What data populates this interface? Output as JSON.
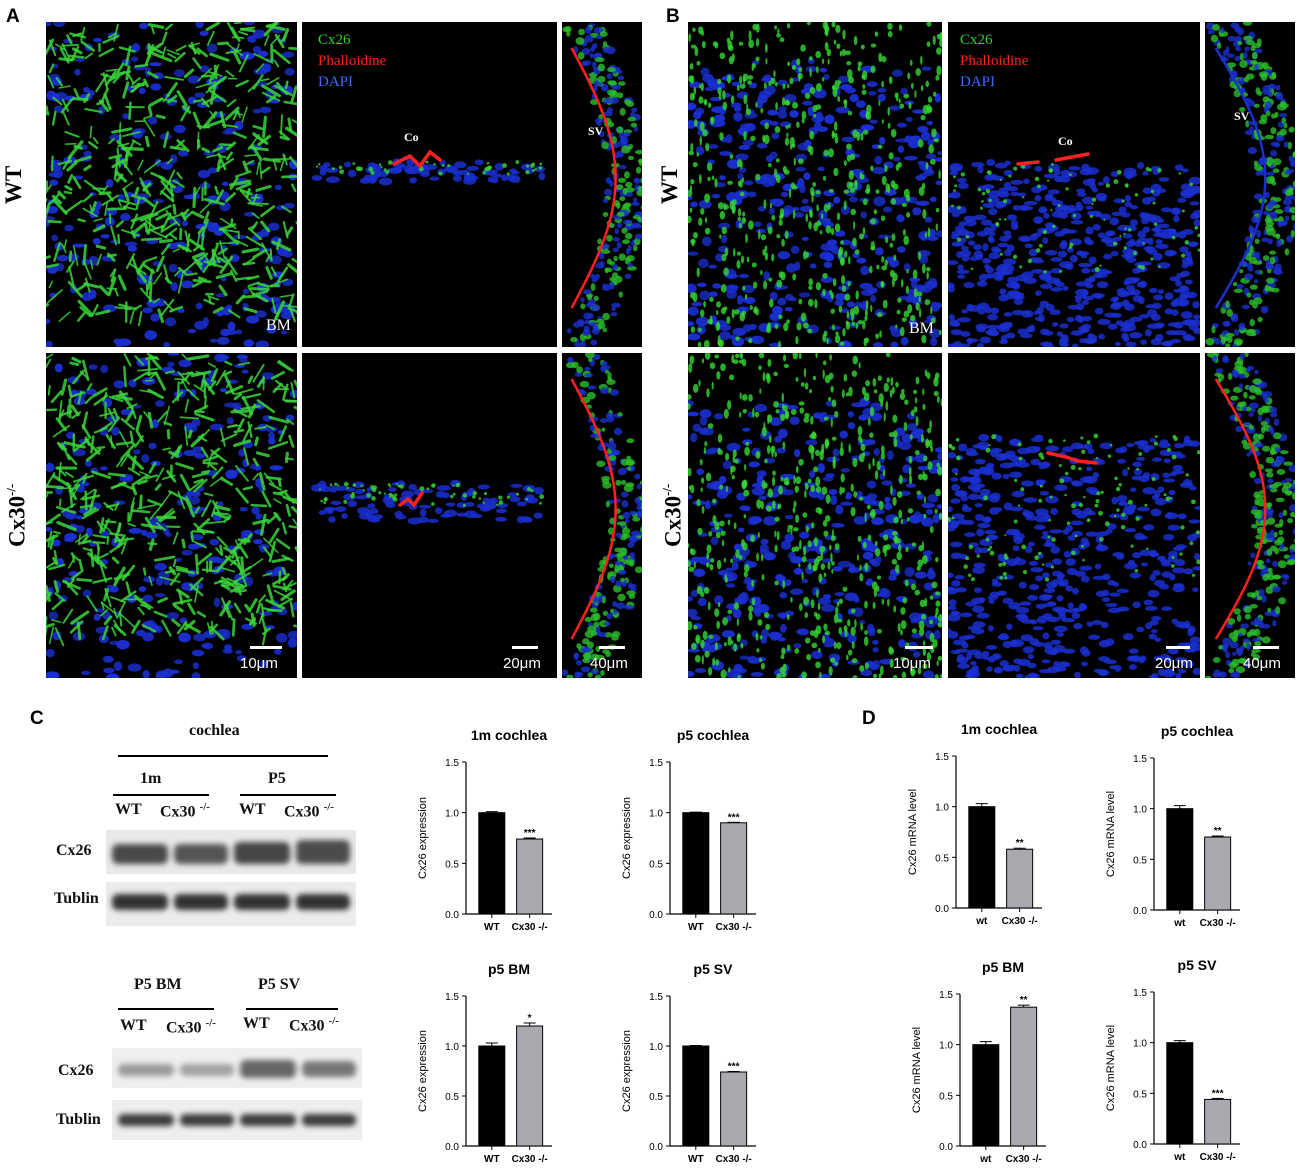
{
  "panels": {
    "a": "A",
    "b": "B",
    "c": "C",
    "d": "D"
  },
  "rows": {
    "wt": "WT",
    "ko": "Cx30",
    "ko_sup": "-/-"
  },
  "legend": {
    "cx26": "Cx26",
    "phalloidine": "Phalloidine",
    "dapi": "DAPI"
  },
  "labels": {
    "bm": "BM",
    "co": "Co",
    "sv": "SV"
  },
  "scales": {
    "s1": "10μm",
    "s2": "20μm",
    "s3": "40μm"
  },
  "colors": {
    "green": "#2fd22f",
    "red": "#ff2020",
    "blue": "#1428c8",
    "black_bar": "#000000",
    "gray_bar": "#a9a9b0"
  },
  "western": {
    "top_group": "cochlea",
    "sub1": "1m",
    "sub2": "P5",
    "bottom_group1": "P5 BM",
    "bottom_group2": "P5 SV",
    "wt": "WT",
    "ko": "Cx30",
    "ko_sup": "-/-",
    "band1": "Cx26",
    "band2": "Tublin"
  },
  "chart_data": [
    {
      "type": "bar",
      "title": "1m cochlea",
      "categories": [
        "WT",
        "Cx30 -/-"
      ],
      "values": [
        1.0,
        0.74
      ],
      "errors": [
        0.01,
        0.01
      ],
      "significance": [
        "",
        "***"
      ],
      "ylabel": "Cx26 expression",
      "ylim": [
        0,
        1.5
      ],
      "yticks": [
        "0.0",
        "0.5",
        "1.0",
        "1.5"
      ]
    },
    {
      "type": "bar",
      "title": "p5 cochlea",
      "categories": [
        "WT",
        "Cx30 -/-"
      ],
      "values": [
        1.0,
        0.9
      ],
      "errors": [
        0.005,
        0.005
      ],
      "significance": [
        "",
        "***"
      ],
      "ylabel": "Cx26 expression",
      "ylim": [
        0,
        1.5
      ],
      "yticks": [
        "0.0",
        "0.5",
        "1.0",
        "1.5"
      ]
    },
    {
      "type": "bar",
      "title": "p5 BM",
      "categories": [
        "WT",
        "Cx30 -/-"
      ],
      "values": [
        1.0,
        1.2
      ],
      "errors": [
        0.03,
        0.03
      ],
      "significance": [
        "",
        "*"
      ],
      "ylabel": "Cx26 expression",
      "ylim": [
        0,
        1.5
      ],
      "yticks": [
        "0.0",
        "0.5",
        "1.0",
        "1.5"
      ]
    },
    {
      "type": "bar",
      "title": "p5 SV",
      "categories": [
        "WT",
        "Cx30 -/-"
      ],
      "values": [
        1.0,
        0.74
      ],
      "errors": [
        0.005,
        0.005
      ],
      "significance": [
        "",
        "***"
      ],
      "ylabel": "Cx26 expression",
      "ylim": [
        0,
        1.5
      ],
      "yticks": [
        "0.0",
        "0.5",
        "1.0",
        "1.5"
      ]
    },
    {
      "type": "bar",
      "title": "1m cochlea",
      "categories": [
        "wt",
        "Cx30 -/-"
      ],
      "values": [
        1.0,
        0.58
      ],
      "errors": [
        0.03,
        0.01
      ],
      "significance": [
        "",
        "**"
      ],
      "ylabel": "Cx26 mRNA level",
      "ylim": [
        0,
        1.5
      ],
      "yticks": [
        "0.0",
        "0.5",
        "1.0",
        "1.5"
      ]
    },
    {
      "type": "bar",
      "title": "p5 cochlea",
      "categories": [
        "wt",
        "Cx30 -/-"
      ],
      "values": [
        1.0,
        0.72
      ],
      "errors": [
        0.03,
        0.01
      ],
      "significance": [
        "",
        "**"
      ],
      "ylabel": "Cx26 mRNA level",
      "ylim": [
        0,
        1.5
      ],
      "yticks": [
        "0.0",
        "0.5",
        "1.0",
        "1.5"
      ]
    },
    {
      "type": "bar",
      "title": "p5 BM",
      "categories": [
        "wt",
        "Cx30 -/-"
      ],
      "values": [
        1.0,
        1.37
      ],
      "errors": [
        0.03,
        0.02
      ],
      "significance": [
        "",
        "**"
      ],
      "ylabel": "Cx26 mRNA level",
      "ylim": [
        0,
        1.5
      ],
      "yticks": [
        "0.0",
        "0.5",
        "1.0",
        "1.5"
      ]
    },
    {
      "type": "bar",
      "title": "p5 SV",
      "categories": [
        "wt",
        "Cx30 -/-"
      ],
      "values": [
        1.0,
        0.44
      ],
      "errors": [
        0.02,
        0.01
      ],
      "significance": [
        "",
        "***"
      ],
      "ylabel": "Cx26 mRNA level",
      "ylim": [
        0,
        1.5
      ],
      "yticks": [
        "0.0",
        "0.5",
        "1.0",
        "1.5"
      ]
    }
  ]
}
